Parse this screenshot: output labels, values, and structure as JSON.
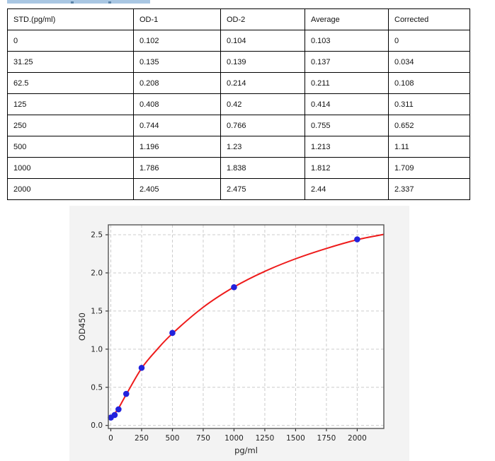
{
  "artifacts": {
    "top_clipped_highlight_color": "#a9c7e3",
    "top_clipped_speck_color": "#5b84a8"
  },
  "table": {
    "headers": [
      "STD.(pg/ml)",
      "OD-1",
      "OD-2",
      "Average",
      "Corrected"
    ],
    "rows": [
      [
        "0",
        "0.102",
        "0.104",
        "0.103",
        "0"
      ],
      [
        "31.25",
        "0.135",
        "0.139",
        "0.137",
        "0.034"
      ],
      [
        "62.5",
        "0.208",
        "0.214",
        "0.211",
        "0.108"
      ],
      [
        "125",
        "0.408",
        "0.42",
        "0.414",
        "0.311"
      ],
      [
        "250",
        "0.744",
        "0.766",
        "0.755",
        "0.652"
      ],
      [
        "500",
        "1.196",
        "1.23",
        "1.213",
        "1.11"
      ],
      [
        "1000",
        "1.786",
        "1.838",
        "1.812",
        "1.709"
      ],
      [
        "2000",
        "2.405",
        "2.475",
        "2.44",
        "2.337"
      ]
    ]
  },
  "chart_data": {
    "type": "scatter",
    "title": "",
    "xlabel": "pg/ml",
    "ylabel": "OD450",
    "xlim": [
      -20,
      2216
    ],
    "ylim": [
      -0.04,
      2.63
    ],
    "x_ticks": [
      0,
      250,
      500,
      750,
      1000,
      1250,
      1500,
      1750,
      2000
    ],
    "y_ticks": [
      0.0,
      0.5,
      1.0,
      1.5,
      2.0,
      2.5
    ],
    "grid": true,
    "legend_position": "none",
    "figure_bg": "#f3f3f3",
    "plot_bg": "#ffffff",
    "grid_color": "#cccccc",
    "spine_color": "#555555",
    "tick_color": "#333333",
    "label_color": "#222222",
    "series": [
      {
        "name": "standards",
        "type": "scatter",
        "color": "#2222dd",
        "x": [
          0,
          31.25,
          62.5,
          125,
          250,
          500,
          1000,
          2000
        ],
        "y": [
          0.103,
          0.137,
          0.211,
          0.414,
          0.755,
          1.213,
          1.812,
          2.44
        ]
      },
      {
        "name": "fit-curve",
        "type": "line",
        "color": "#ee1b1b",
        "points": [
          [
            0,
            0.09
          ],
          [
            31.25,
            0.155
          ],
          [
            62.5,
            0.225
          ],
          [
            125,
            0.405
          ],
          [
            250,
            0.75
          ],
          [
            375,
            0.995
          ],
          [
            500,
            1.205
          ],
          [
            750,
            1.55
          ],
          [
            1000,
            1.815
          ],
          [
            1250,
            2.02
          ],
          [
            1500,
            2.185
          ],
          [
            1750,
            2.32
          ],
          [
            2000,
            2.435
          ],
          [
            2216,
            2.505
          ]
        ]
      }
    ]
  }
}
